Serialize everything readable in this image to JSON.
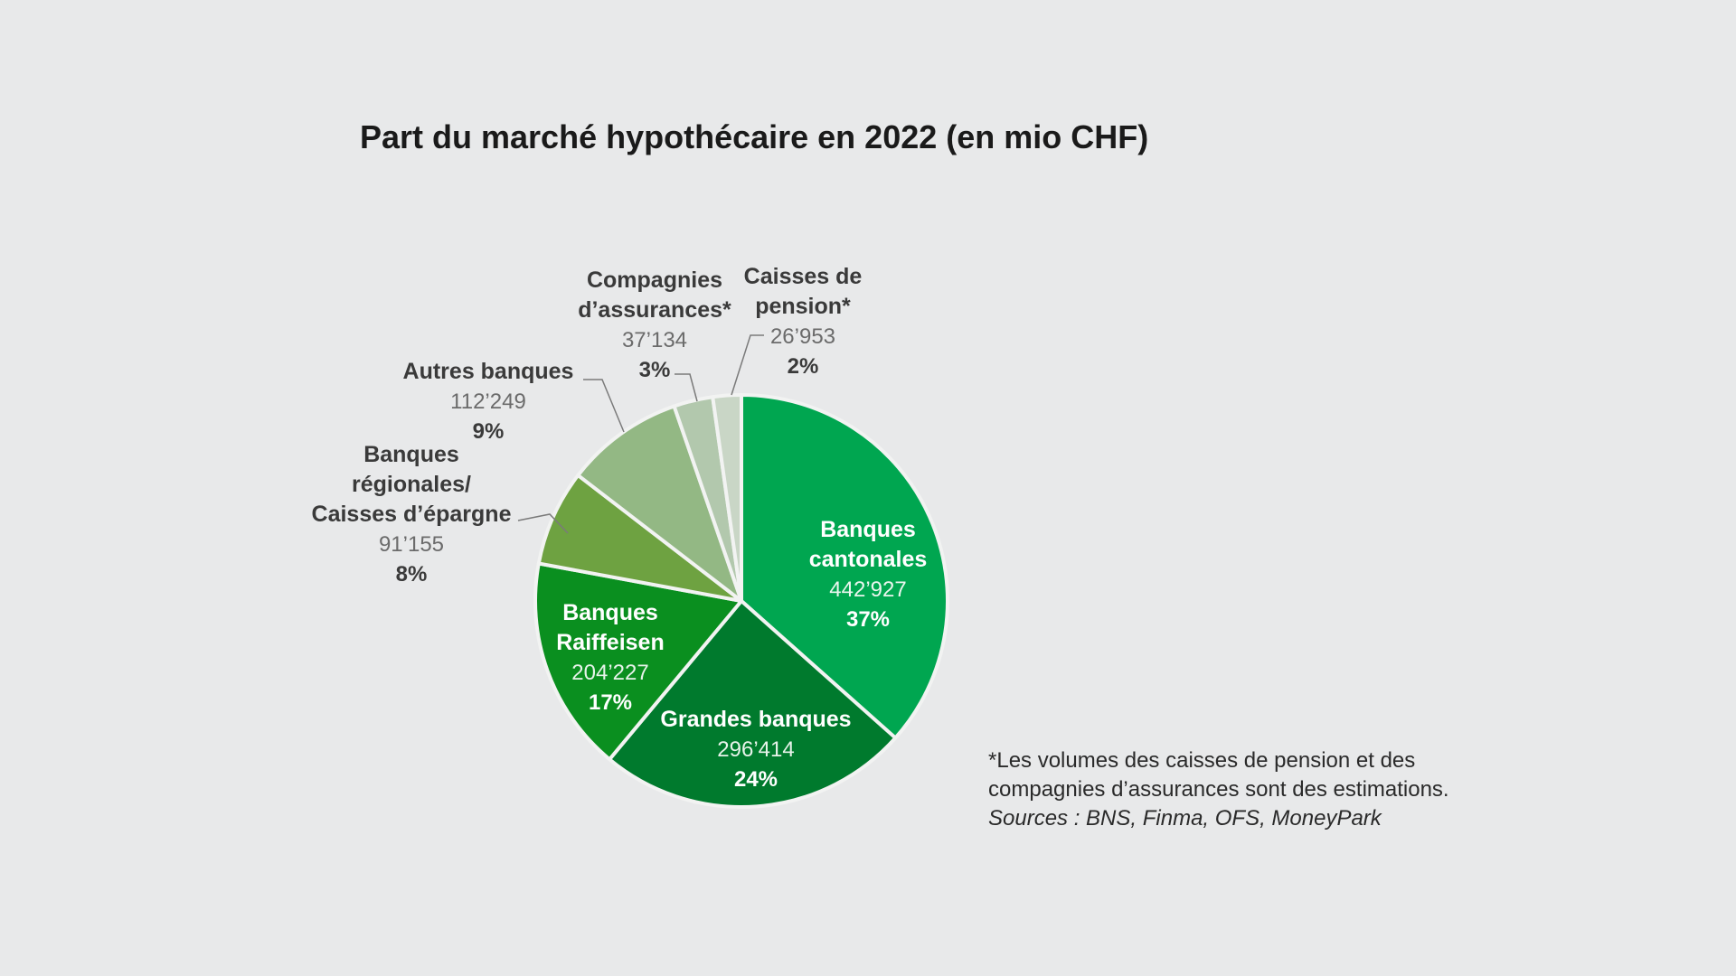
{
  "chart_data": {
    "type": "pie",
    "title": "Part du marché hypothécaire en 2022 (en mio CHF)",
    "slices": [
      {
        "label": [
          "Banques",
          "cantonales"
        ],
        "value_text": "442’927",
        "pct_text": "37%",
        "value": 442927,
        "pct": 37,
        "color": "#00a650",
        "label_inside": true
      },
      {
        "label": [
          "Grandes banques"
        ],
        "value_text": "296’414",
        "pct_text": "24%",
        "value": 296414,
        "pct": 24,
        "color": "#007a2d",
        "label_inside": true
      },
      {
        "label": [
          "Banques",
          "Raiffeisen"
        ],
        "value_text": "204’227",
        "pct_text": "17%",
        "value": 204227,
        "pct": 17,
        "color": "#0a8f1f",
        "label_inside": true
      },
      {
        "label": [
          "Banques",
          "régionales/",
          "Caisses d’épargne"
        ],
        "value_text": "91’155",
        "pct_text": "8%",
        "value": 91155,
        "pct": 8,
        "color": "#6ea241",
        "label_inside": false
      },
      {
        "label": [
          "Autres banques"
        ],
        "value_text": "112’249",
        "pct_text": "9%",
        "value": 112249,
        "pct": 9,
        "color": "#93b884",
        "label_inside": false
      },
      {
        "label": [
          "Compagnies",
          "d’assurances*"
        ],
        "value_text": "37’134",
        "pct_text": "3%",
        "value": 37134,
        "pct": 3,
        "color": "#b2c8ad",
        "label_inside": false
      },
      {
        "label": [
          "Caisses de",
          "pension*"
        ],
        "value_text": "26’953",
        "pct_text": "2%",
        "value": 26953,
        "pct": 2,
        "color": "#c9d6c6",
        "label_inside": false
      }
    ]
  },
  "footnote": {
    "line1": "*Les volumes des caisses de pension et des",
    "line2": "compagnies d’assurances sont des estimations.",
    "sources": "Sources : BNS, Finma, OFS, MoneyPark"
  }
}
